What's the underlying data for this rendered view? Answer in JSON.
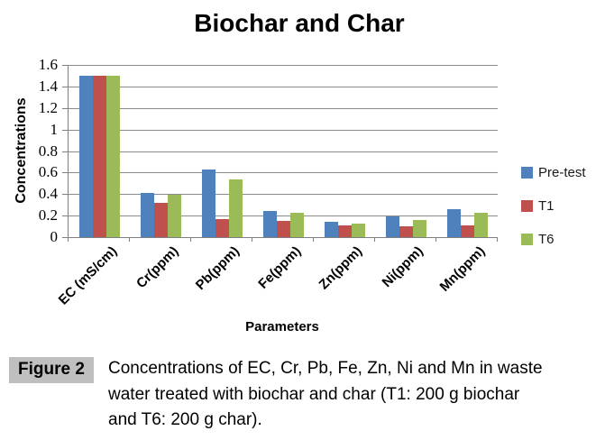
{
  "chart_data": {
    "type": "bar",
    "title": "Biochar and Char",
    "xlabel": "Parameters",
    "ylabel": "Concentrations",
    "categories": [
      "EC (mS/cm)",
      "Cr(ppm)",
      "Pb(ppm)",
      "Fe(ppm)",
      "Zn(ppm)",
      "Ni(ppm)",
      "Mn(ppm)"
    ],
    "series": [
      {
        "name": "Pre-test",
        "color": "#4F81BD",
        "values": [
          1.5,
          0.41,
          0.63,
          0.24,
          0.14,
          0.19,
          0.26
        ]
      },
      {
        "name": "T1",
        "color": "#C0504D",
        "values": [
          1.5,
          0.32,
          0.17,
          0.15,
          0.11,
          0.1,
          0.11
        ]
      },
      {
        "name": "T6",
        "color": "#9BBB59",
        "values": [
          1.5,
          0.39,
          0.54,
          0.23,
          0.13,
          0.16,
          0.23
        ]
      }
    ],
    "ylim": [
      0,
      1.6
    ],
    "yticks": [
      "0",
      "0.2",
      "0.4",
      "0.6",
      "0.8",
      "1",
      "1.2",
      "1.4",
      "1.6"
    ],
    "grid": true,
    "legend_position": "right",
    "gridline_color": "#8C8C8C",
    "axis_color": "#7F7F7F"
  },
  "caption": {
    "label": "Figure 2",
    "label_bg": "#BFBFBF",
    "lines": [
      "Concentrations of EC, Cr, Pb, Fe, Zn, Ni and Mn in waste",
      "water treated with biochar and char (T1: 200 g biochar",
      "and T6: 200 g char)."
    ]
  }
}
